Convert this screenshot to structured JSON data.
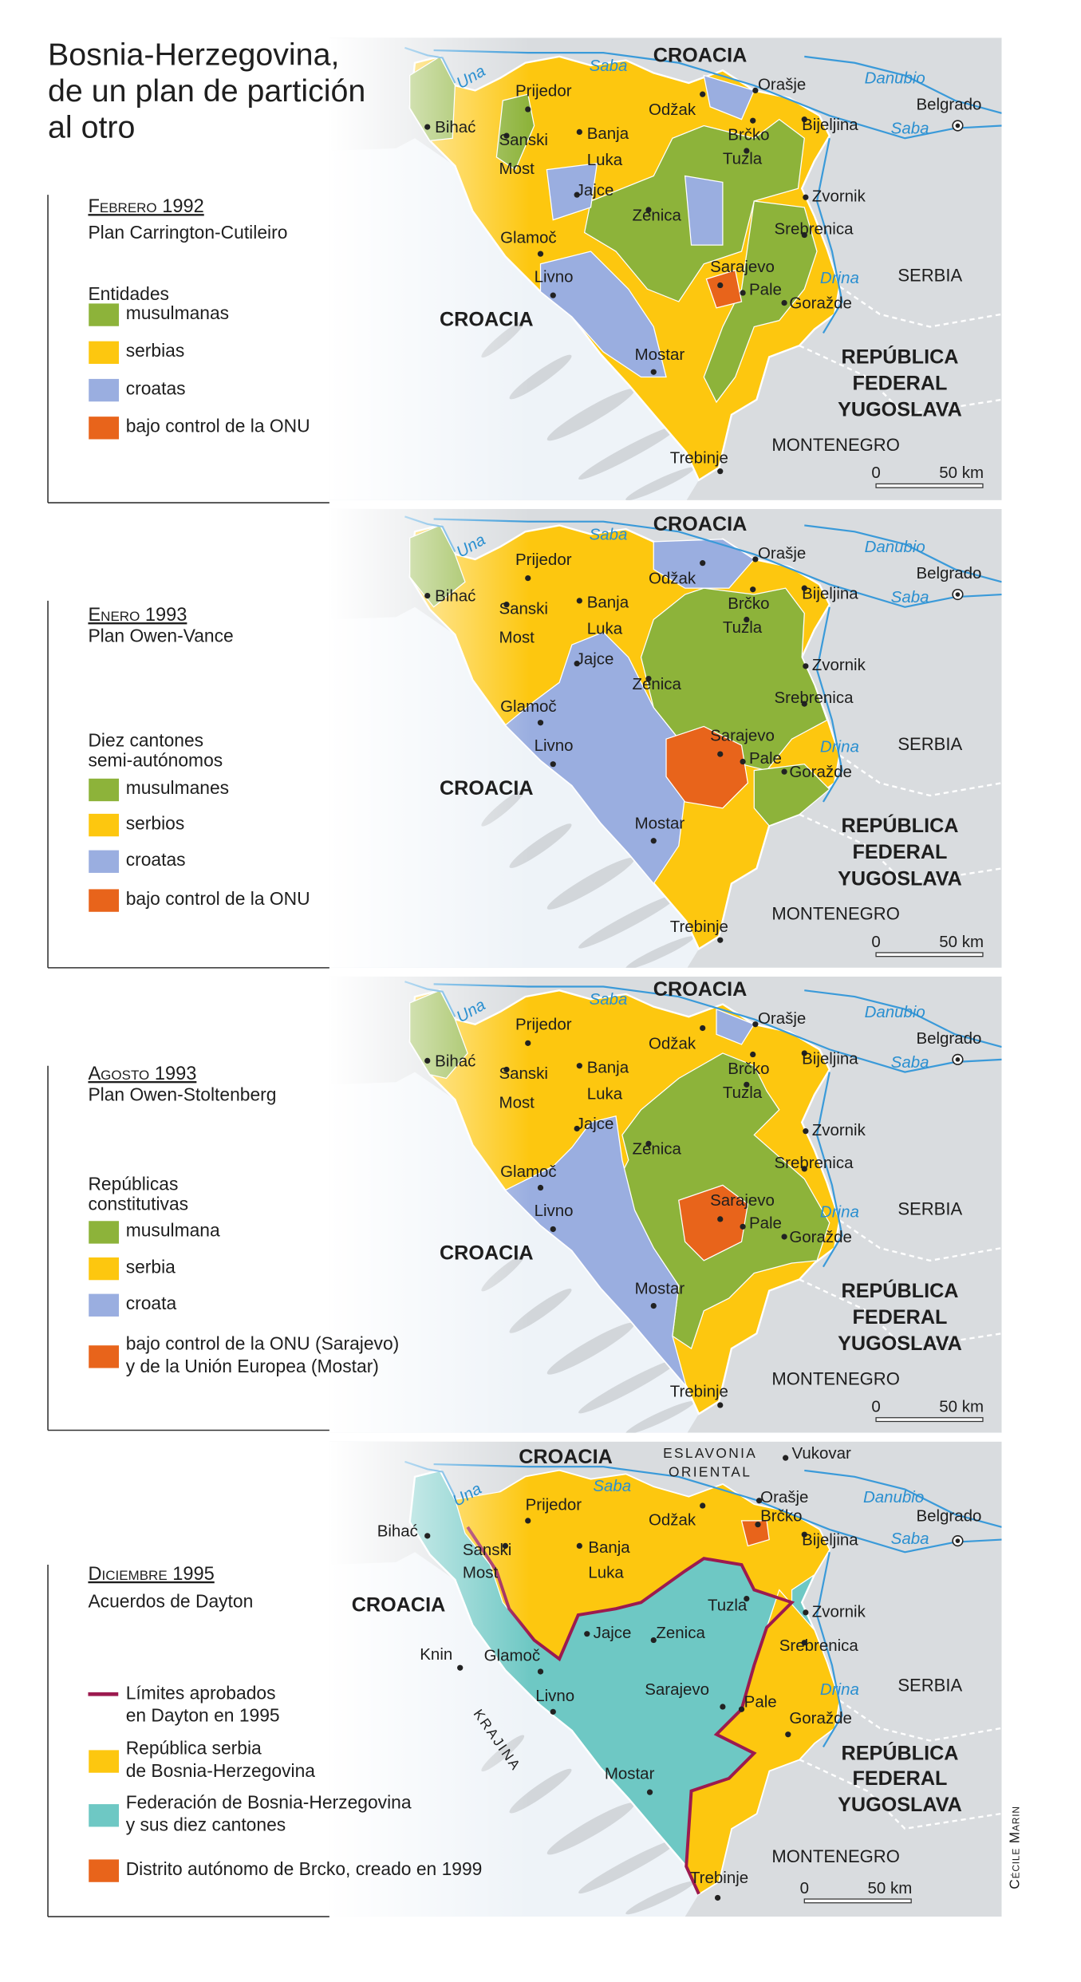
{
  "title": [
    "Bosnia-Herzegovina,",
    "de un plan de partición",
    "al otro"
  ],
  "panels": [
    {
      "date": "Febrero 1992",
      "plan": "Plan Carrington-Cutileiro",
      "legend_title": [
        "Entidades"
      ],
      "legend": [
        [
          "musulmanas"
        ],
        [
          "serbias"
        ],
        [
          "croatas"
        ],
        [
          "bajo control de la ONU"
        ]
      ],
      "colors": [
        "#8db33a",
        "#fdc70f",
        "#9aaee0",
        "#e8641b"
      ],
      "labels": [
        "CROACIA",
        "CROACIA",
        "Saba",
        "Una",
        "Danubio",
        "Saba",
        "Drina",
        "SERBIA",
        "REPÚBLICA",
        "FEDERAL",
        "YUGOSLAVA",
        "MONTENEGRO",
        "Belgrado",
        "Bihać",
        "Prijedor",
        "Sanski",
        "Most",
        "Banja",
        "Luka",
        "Odžak",
        "Orašje",
        "Brčko",
        "Bijeljina",
        "Tuzla",
        "Zvornik",
        "Jajce",
        "Zenica",
        "Srebrenica",
        "Glamoč",
        "Livno",
        "Sarajevo",
        "Pale",
        "Goražde",
        "Mostar",
        "Trebinje"
      ],
      "scale": [
        "0",
        "50 km"
      ]
    },
    {
      "date": "Enero 1993",
      "plan": "Plan Owen-Vance",
      "legend_title": [
        "Diez cantones",
        "semi-autónomos"
      ],
      "legend": [
        [
          "musulmanes"
        ],
        [
          "serbios"
        ],
        [
          "croatas"
        ],
        [
          "bajo control de la ONU"
        ]
      ],
      "colors": [
        "#8db33a",
        "#fdc70f",
        "#9aaee0",
        "#e8641b"
      ],
      "labels": [
        "CROACIA",
        "CROACIA",
        "Saba",
        "Una",
        "Danubio",
        "Saba",
        "Drina",
        "SERBIA",
        "REPÚBLICA",
        "FEDERAL",
        "YUGOSLAVA",
        "MONTENEGRO",
        "Belgrado",
        "Bihać",
        "Prijedor",
        "Sanski",
        "Most",
        "Banja",
        "Luka",
        "Odžak",
        "Orašje",
        "Brčko",
        "Bijeljina",
        "Tuzla",
        "Zvornik",
        "Jajce",
        "Zenica",
        "Srebrenica",
        "Glamoč",
        "Livno",
        "Sarajevo",
        "Pale",
        "Goražde",
        "Mostar",
        "Trebinje"
      ],
      "scale": [
        "0",
        "50 km"
      ]
    },
    {
      "date": "Agosto 1993",
      "plan": "Plan Owen-Stoltenberg",
      "legend_title": [
        "Repúblicas",
        "constitutivas"
      ],
      "legend": [
        [
          "musulmana"
        ],
        [
          "serbia"
        ],
        [
          "croata"
        ],
        [
          "bajo control de la ONU (Sarajevo)",
          "y de la Unión Europea (Mostar)"
        ]
      ],
      "colors": [
        "#8db33a",
        "#fdc70f",
        "#9aaee0",
        "#e8641b"
      ],
      "labels": [
        "CROACIA",
        "CROACIA",
        "Saba",
        "Una",
        "Danubio",
        "Saba",
        "Drina",
        "SERBIA",
        "REPÚBLICA",
        "FEDERAL",
        "YUGOSLAVA",
        "MONTENEGRO",
        "Belgrado",
        "Bihać",
        "Prijedor",
        "Sanski",
        "Most",
        "Banja",
        "Luka",
        "Odžak",
        "Orašje",
        "Brčko",
        "Bijeljina",
        "Tuzla",
        "Zvornik",
        "Jajce",
        "Zenica",
        "Srebrenica",
        "Glamoč",
        "Livno",
        "Sarajevo",
        "Pale",
        "Goražde",
        "Mostar",
        "Trebinje"
      ],
      "scale": [
        "0",
        "50 km"
      ]
    },
    {
      "date": "Diciembre 1995",
      "plan": "Acuerdos de Dayton",
      "legend_title": [],
      "legend": [
        [
          "Límites aprobados",
          "en Dayton en 1995"
        ],
        [
          "República serbia",
          "de Bosnia-Herzegovina"
        ],
        [
          "Federación de Bosnia-Herzegovina",
          "y sus diez cantones"
        ],
        [
          "Distrito autónomo de Brcko, creado en 1999"
        ]
      ],
      "legend_marks": [
        "line",
        "patch",
        "patch",
        "patch"
      ],
      "colors": [
        "#9c1a4f",
        "#fdc70f",
        "#6ec8c4",
        "#e8641b"
      ],
      "labels": [
        "CROACIA",
        "ESLAVONIA",
        "ORIENTAL",
        "Vukovar",
        "Saba",
        "Una",
        "Danubio",
        "Saba",
        "CROACIA",
        "Knin",
        "KRAJINA",
        "Drina",
        "SERBIA",
        "REPÚBLICA",
        "FEDERAL",
        "YUGOSLAVA",
        "MONTENEGRO",
        "Belgrado",
        "Bihać",
        "Prijedor",
        "Sanski",
        "Most",
        "Banja",
        "Luka",
        "Odžak",
        "Orašje",
        "Brčko",
        "Bijeljina",
        "Tuzla",
        "Zvornik",
        "Jajce",
        "Zenica",
        "Srebrenica",
        "Glamoč",
        "Livno",
        "Sarajevo",
        "Pale",
        "Goražde",
        "Mostar",
        "Trebinje"
      ],
      "scale": [
        "0",
        "50 km"
      ]
    }
  ],
  "credit": "Cécile Marin"
}
